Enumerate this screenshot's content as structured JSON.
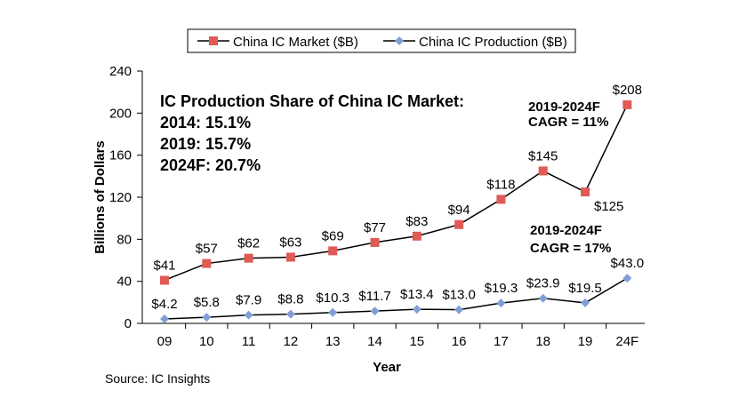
{
  "chart_data": {
    "type": "line",
    "categories": [
      "09",
      "10",
      "11",
      "12",
      "13",
      "14",
      "15",
      "16",
      "17",
      "18",
      "19",
      "24F"
    ],
    "series": [
      {
        "name": "China IC Market ($B)",
        "values": [
          41,
          57,
          62,
          63,
          69,
          77,
          83,
          94,
          118,
          145,
          125,
          208
        ],
        "labels": [
          "$41",
          "$57",
          "$62",
          "$63",
          "$69",
          "$77",
          "$83",
          "$94",
          "$118",
          "$145",
          "$125",
          "$208"
        ],
        "color": "#e05a56",
        "marker": "square"
      },
      {
        "name": "China IC Production ($B)",
        "values": [
          4.2,
          5.8,
          7.9,
          8.8,
          10.3,
          11.7,
          13.4,
          13.0,
          19.3,
          23.9,
          19.5,
          43.0
        ],
        "labels": [
          "$4.2",
          "$5.8",
          "$7.9",
          "$8.8",
          "$10.3",
          "$11.7",
          "$13.4",
          "$13.0",
          "$19.3",
          "$23.9",
          "$19.5",
          "$43.0"
        ],
        "color": "#7f9fd6",
        "marker": "diamond"
      }
    ],
    "xlabel": "Year",
    "ylabel": "Billions of Dollars",
    "ylim": [
      0,
      240
    ],
    "yticks": [
      0,
      40,
      80,
      120,
      160,
      200,
      240
    ],
    "legend": "top-center",
    "grid": false,
    "annotations": {
      "share_title": "IC Production Share of China IC Market:",
      "share_lines": [
        "2014: 15.1%",
        "2019: 15.7%",
        "2024F: 20.7%"
      ],
      "market_cagr": [
        "2019-2024F",
        "CAGR = 11%"
      ],
      "production_cagr": [
        "2019-2024F",
        "CAGR = 17%"
      ]
    }
  },
  "source": "Source: IC Insights"
}
